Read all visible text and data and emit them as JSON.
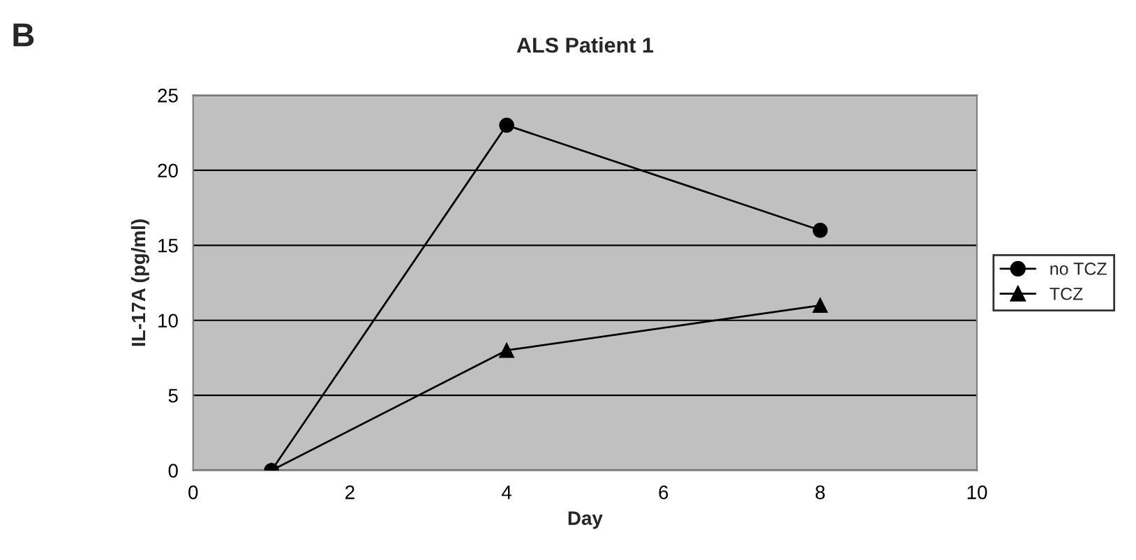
{
  "chart_data": {
    "type": "line",
    "title": "ALS Patient 1",
    "xlabel": "Day",
    "ylabel": "IL-17A (pg/ml)",
    "annotations": [
      "B"
    ],
    "x": [
      1,
      4,
      8
    ],
    "series": [
      {
        "name": "no TCZ",
        "color": "#000000",
        "marker": "circle",
        "values": [
          0,
          23,
          16
        ]
      },
      {
        "name": "TCZ",
        "color": "#000000",
        "marker": "triangle",
        "values": [
          0,
          8,
          11
        ]
      }
    ],
    "xlim": [
      0,
      10
    ],
    "xticks": [
      0,
      2,
      4,
      6,
      8,
      10
    ],
    "ylim": [
      0,
      25
    ],
    "yticks": [
      0,
      5,
      10,
      15,
      20,
      25
    ],
    "grid": "y",
    "legend": "right",
    "line_style": "solid"
  }
}
